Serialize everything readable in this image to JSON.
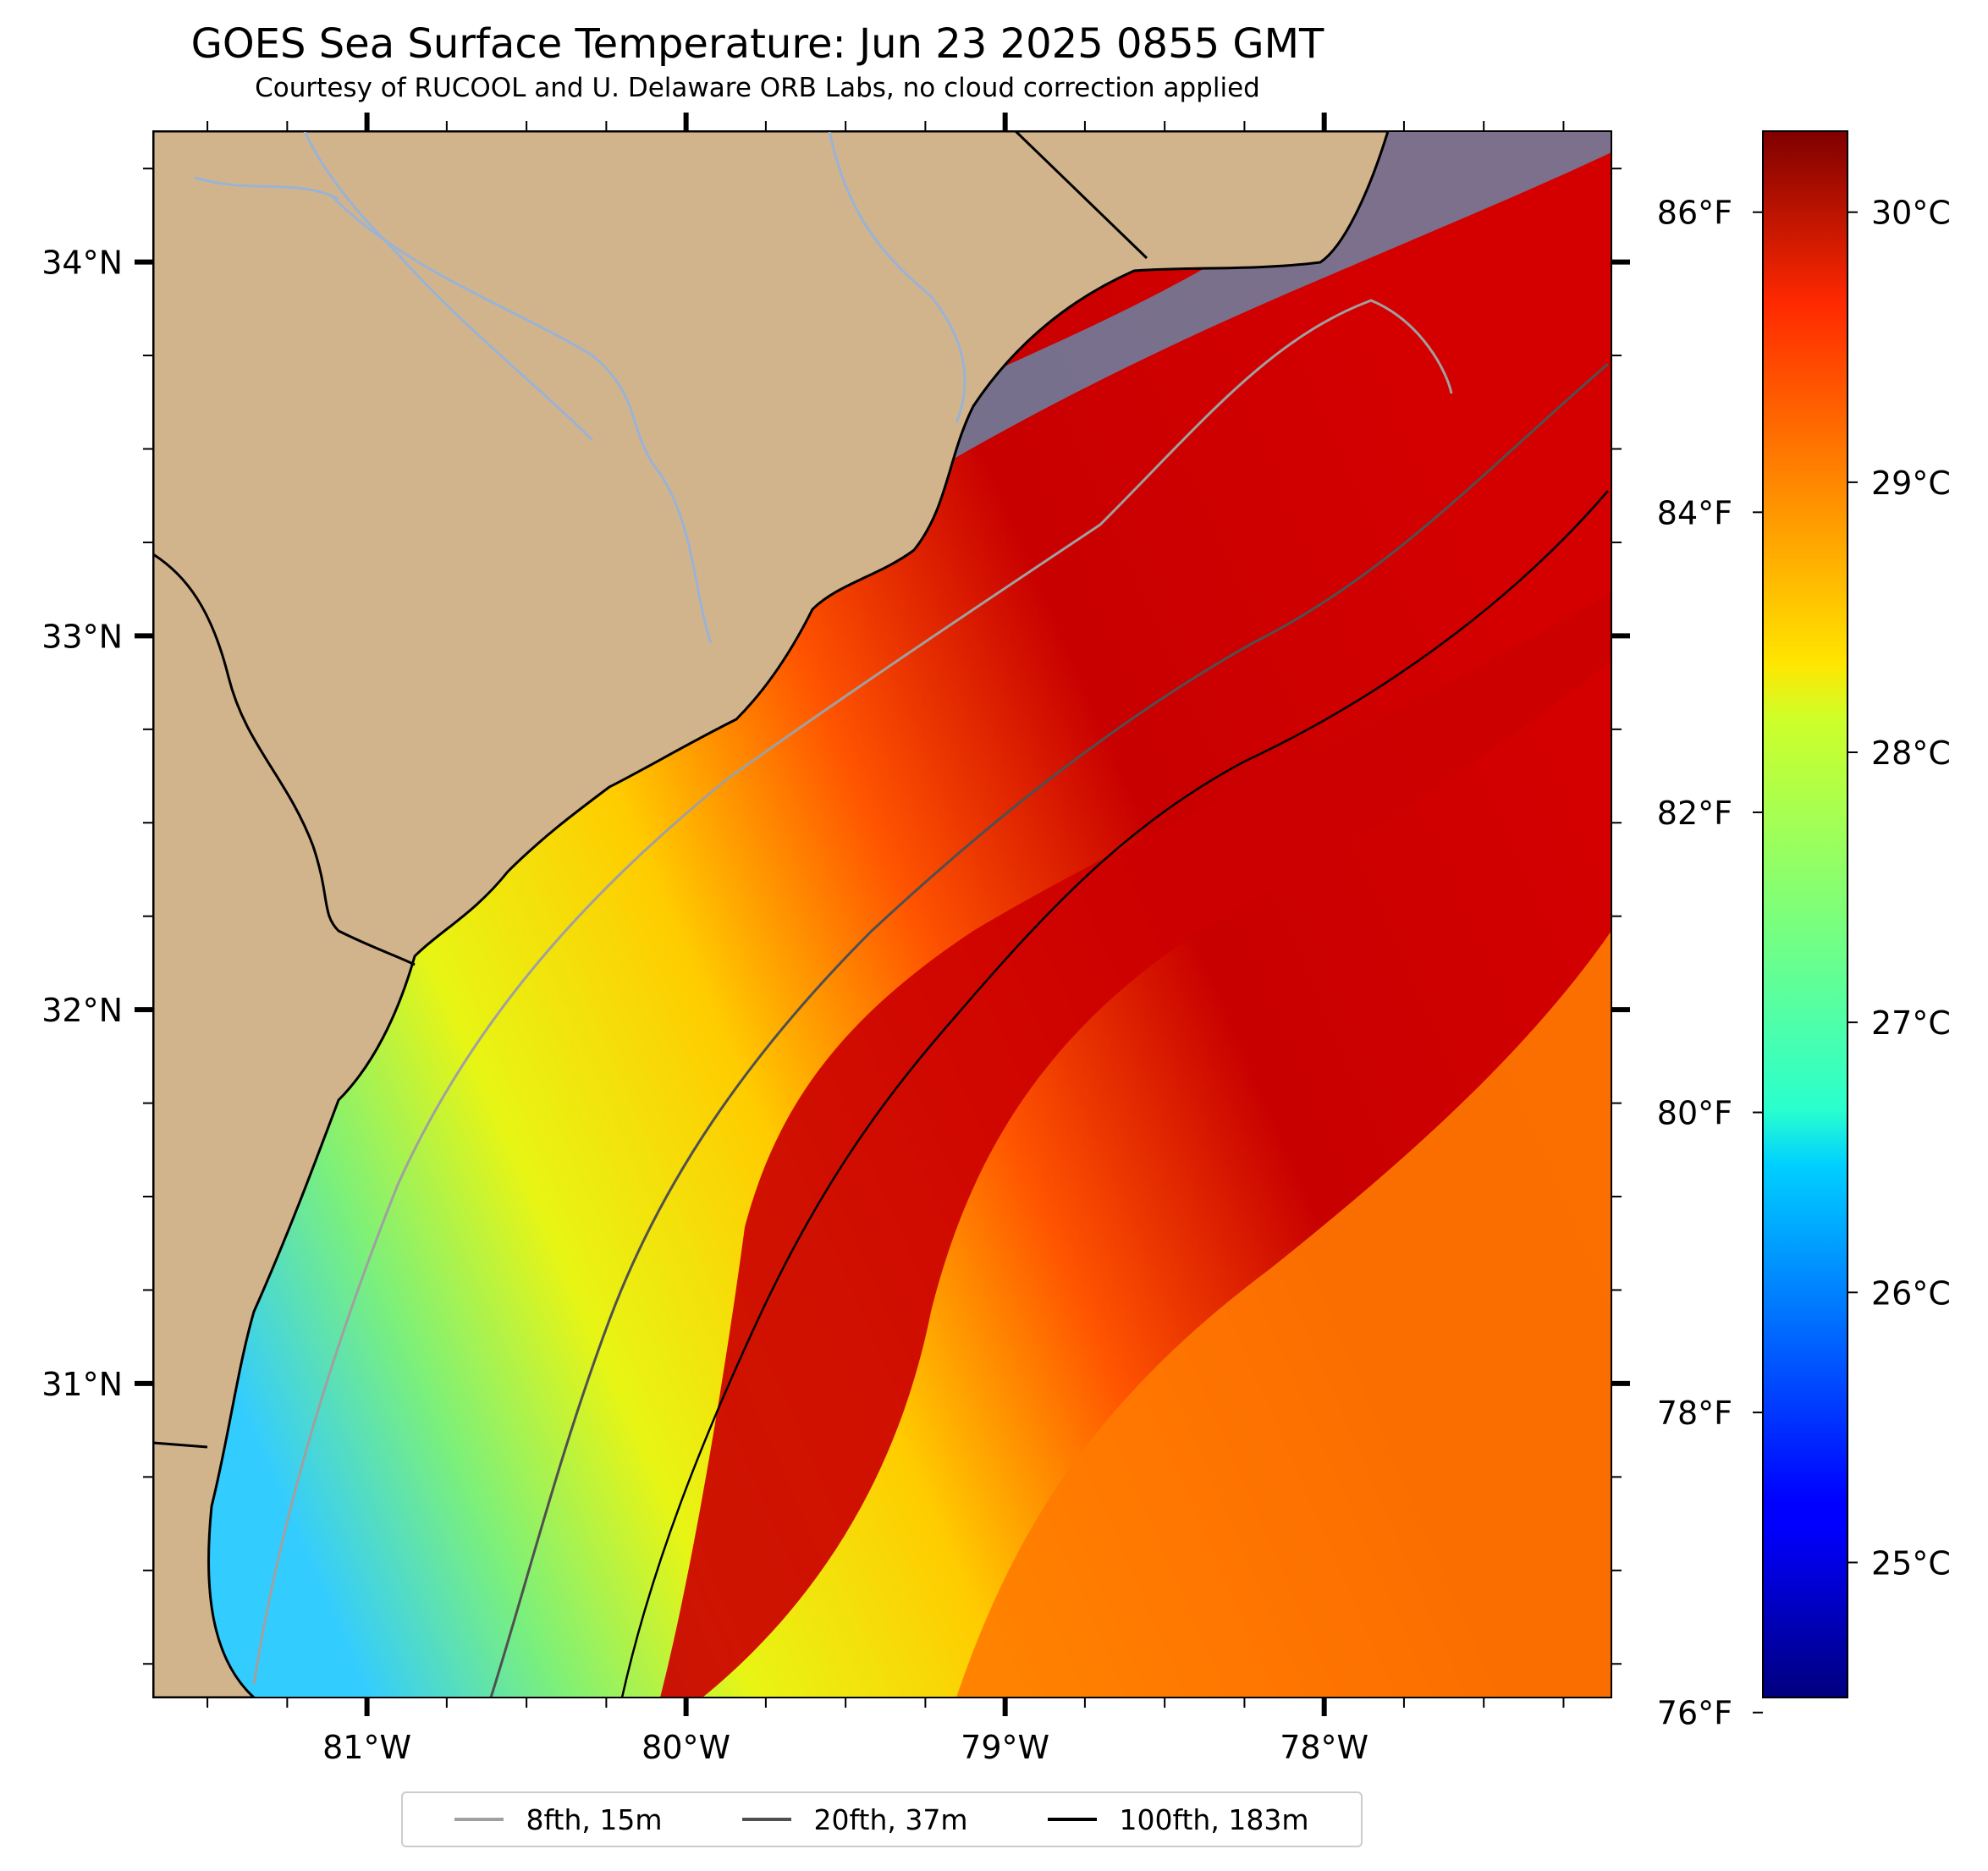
{
  "title": "GOES Sea Surface Temperature: Jun 23 2025 0855 GMT",
  "subtitle": "Courtesy of RUCOOL and U. Delaware ORB Labs, no cloud correction applied",
  "colors": {
    "land": "#d2b48c",
    "water_cool": "#33ccff",
    "water_mid": "#e8f514",
    "water_warm": "#ff7a00",
    "water_hot": "#c80000",
    "river": "#9ab3d5",
    "coastline": "#000000",
    "isobath_8fth": "#a0a0a0",
    "isobath_20fth": "#505050",
    "isobath_100fth": "#000000"
  },
  "map": {
    "projection": "lat/lon",
    "lon_range": [
      -81.67,
      -77.1
    ],
    "lat_range": [
      30.16,
      34.35
    ],
    "lat_ticks": [
      {
        "label": "34°N",
        "value": 34
      },
      {
        "label": "33°N",
        "value": 33
      },
      {
        "label": "32°N",
        "value": 32
      },
      {
        "label": "31°N",
        "value": 31
      }
    ],
    "lon_ticks": [
      {
        "label": "81°W",
        "value": -81
      },
      {
        "label": "80°W",
        "value": -80
      },
      {
        "label": "79°W",
        "value": -79
      },
      {
        "label": "78°W",
        "value": -78
      }
    ]
  },
  "colorbar": {
    "colormap": "jet",
    "range_c": [
      24.5,
      30.3
    ],
    "celsius_ticks": [
      {
        "label": "30°C",
        "value": 30
      },
      {
        "label": "29°C",
        "value": 29
      },
      {
        "label": "28°C",
        "value": 28
      },
      {
        "label": "27°C",
        "value": 27
      },
      {
        "label": "26°C",
        "value": 26
      },
      {
        "label": "25°C",
        "value": 25
      }
    ],
    "fahrenheit_ticks": [
      {
        "label": "86°F",
        "value": 86
      },
      {
        "label": "84°F",
        "value": 84
      },
      {
        "label": "82°F",
        "value": 82
      },
      {
        "label": "80°F",
        "value": 80
      },
      {
        "label": "78°F",
        "value": 78
      },
      {
        "label": "76°F",
        "value": 76
      }
    ]
  },
  "legend": [
    {
      "label": "8fth, 15m",
      "color": "#a0a0a0"
    },
    {
      "label": "20fth, 37m",
      "color": "#505050"
    },
    {
      "label": "100fth, 183m",
      "color": "#000000"
    }
  ]
}
